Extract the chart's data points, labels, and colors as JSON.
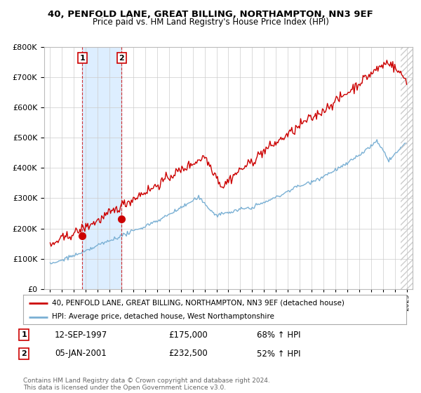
{
  "title": "40, PENFOLD LANE, GREAT BILLING, NORTHAMPTON, NN3 9EF",
  "subtitle": "Price paid vs. HM Land Registry's House Price Index (HPI)",
  "footnote": "Contains HM Land Registry data © Crown copyright and database right 2024.\nThis data is licensed under the Open Government Licence v3.0.",
  "legend_line1": "40, PENFOLD LANE, GREAT BILLING, NORTHAMPTON, NN3 9EF (detached house)",
  "legend_line2": "HPI: Average price, detached house, West Northamptonshire",
  "table": [
    {
      "num": "1",
      "date": "12-SEP-1997",
      "price": "£175,000",
      "hpi": "68% ↑ HPI"
    },
    {
      "num": "2",
      "date": "05-JAN-2001",
      "price": "£232,500",
      "hpi": "52% ↑ HPI"
    }
  ],
  "marker1_year": 1997.71,
  "marker1_value": 175000,
  "marker2_year": 2001.02,
  "marker2_value": 232500,
  "red_line_color": "#cc0000",
  "blue_line_color": "#7ab0d4",
  "shade_color": "#ddeeff",
  "background_color": "#ffffff",
  "grid_color": "#cccccc",
  "ylim_max": 800000,
  "xlim_start": 1994.5,
  "xlim_end": 2025.5
}
